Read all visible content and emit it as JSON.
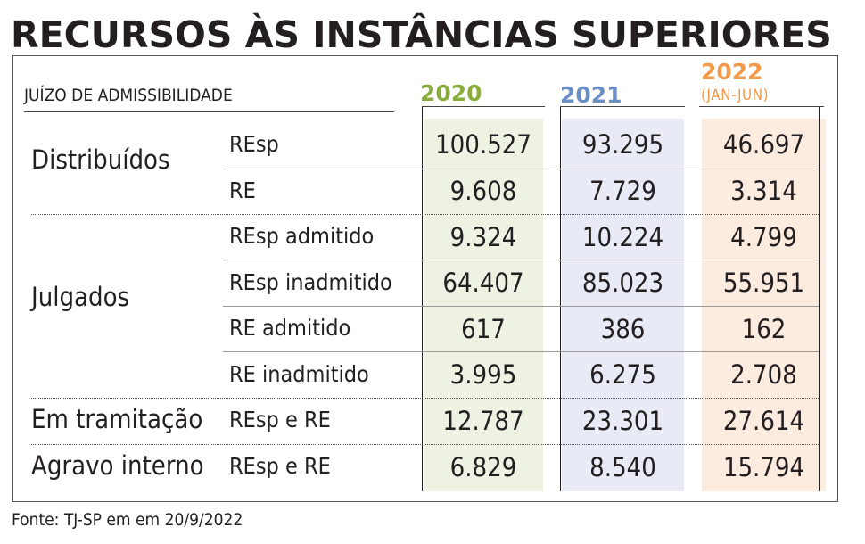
{
  "title": "RECURSOS ÀS INSTÂNCIAS SUPERIORES",
  "subtitle": "JUÍZO DE ADMISSIBILIDADE",
  "columns": [
    {
      "year": "2020",
      "note": "",
      "color": "#8aac3c"
    },
    {
      "year": "2021",
      "note": "",
      "color": "#6a8fc4"
    },
    {
      "year": "2022",
      "note": "(JAN-JUN)",
      "color": "#f29a4a"
    }
  ],
  "groups": [
    "Distribuídos",
    "Julgados",
    "Em tramitação",
    "Agravo interno"
  ],
  "rows": [
    {
      "group": "Distribuídos",
      "label": "REsp",
      "values": [
        "100.527",
        "93.295",
        "46.697"
      ]
    },
    {
      "group": "Distribuídos",
      "label": "RE",
      "values": [
        "9.608",
        "7.729",
        "3.314"
      ]
    },
    {
      "group": "Julgados",
      "label": "REsp admitido",
      "values": [
        "9.324",
        "10.224",
        "4.799"
      ]
    },
    {
      "group": "Julgados",
      "label": "REsp inadmitido",
      "values": [
        "64.407",
        "85.023",
        "55.951"
      ]
    },
    {
      "group": "Julgados",
      "label": "RE admitido",
      "values": [
        "617",
        "386",
        "162"
      ]
    },
    {
      "group": "Julgados",
      "label": "RE inadmitido",
      "values": [
        "3.995",
        "6.275",
        "2.708"
      ]
    },
    {
      "group": "Em tramitação",
      "label": "REsp e RE",
      "values": [
        "12.787",
        "23.301",
        "27.614"
      ]
    },
    {
      "group": "Agravo interno",
      "label": "REsp e RE",
      "values": [
        "6.829",
        "8.540",
        "15.794"
      ]
    }
  ],
  "source": "Fonte: TJ-SP em em 20/9/2022",
  "chart_data": {
    "type": "table",
    "title": "RECURSOS ÀS INSTÂNCIAS SUPERIORES",
    "subtitle": "JUÍZO DE ADMISSIBILIDADE",
    "columns": [
      "2020",
      "2021",
      "2022 (JAN-JUN)"
    ],
    "rows": [
      {
        "group": "Distribuídos",
        "label": "REsp",
        "values": [
          100527,
          93295,
          46697
        ]
      },
      {
        "group": "Distribuídos",
        "label": "RE",
        "values": [
          9608,
          7729,
          3314
        ]
      },
      {
        "group": "Julgados",
        "label": "REsp admitido",
        "values": [
          9324,
          10224,
          4799
        ]
      },
      {
        "group": "Julgados",
        "label": "REsp inadmitido",
        "values": [
          64407,
          85023,
          55951
        ]
      },
      {
        "group": "Julgados",
        "label": "RE admitido",
        "values": [
          617,
          386,
          162
        ]
      },
      {
        "group": "Julgados",
        "label": "RE inadmitido",
        "values": [
          3995,
          6275,
          2708
        ]
      },
      {
        "group": "Em tramitação",
        "label": "REsp e RE",
        "values": [
          12787,
          23301,
          27614
        ]
      },
      {
        "group": "Agravo interno",
        "label": "REsp e RE",
        "values": [
          6829,
          8540,
          15794
        ]
      }
    ],
    "source": "Fonte: TJ-SP em em 20/9/2022"
  }
}
